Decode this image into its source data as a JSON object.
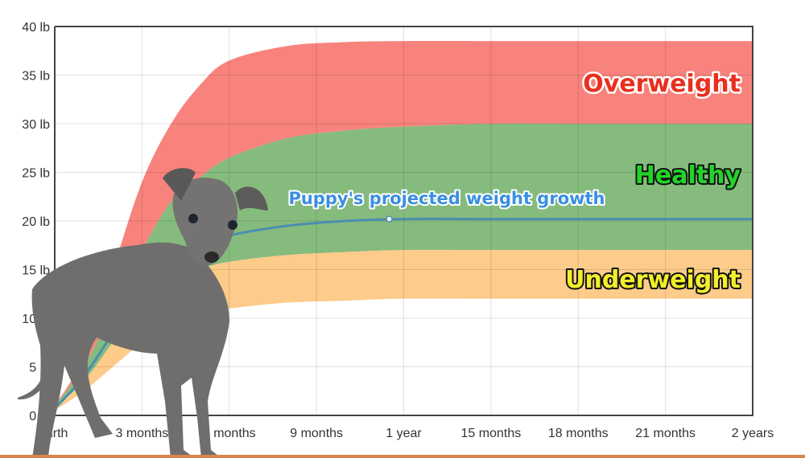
{
  "chart_data": {
    "type": "area",
    "title": "",
    "xlabel": "",
    "ylabel": "",
    "x_unit": "months",
    "x_ticks": [
      {
        "value": 0,
        "label": "Birth"
      },
      {
        "value": 3,
        "label": "3 months"
      },
      {
        "value": 6,
        "label": "6 months"
      },
      {
        "value": 9,
        "label": "9 months"
      },
      {
        "value": 12,
        "label": "1 year"
      },
      {
        "value": 15,
        "label": "15 months"
      },
      {
        "value": 18,
        "label": "18 months"
      },
      {
        "value": 21,
        "label": "21 months"
      },
      {
        "value": 24,
        "label": "2 years"
      }
    ],
    "y_ticks": [
      {
        "value": 0,
        "label": "0 lb"
      },
      {
        "value": 5,
        "label": "5 lb"
      },
      {
        "value": 10,
        "label": "10 lb"
      },
      {
        "value": 15,
        "label": "15 lb"
      },
      {
        "value": 20,
        "label": "20 lb"
      },
      {
        "value": 25,
        "label": "25 lb"
      },
      {
        "value": 30,
        "label": "30 lb"
      },
      {
        "value": 35,
        "label": "35 lb"
      },
      {
        "value": 40,
        "label": "40 lb"
      }
    ],
    "xlim": [
      0,
      24
    ],
    "ylim": [
      0,
      40
    ],
    "grid": true,
    "x": [
      0,
      1,
      2,
      3,
      4,
      5,
      6,
      8,
      10,
      12,
      15,
      18,
      21,
      24
    ],
    "bands": [
      {
        "name": "Overweight",
        "color": "#f8837c",
        "label_color": "#e8301e",
        "upper": [
          1,
          6,
          15,
          24,
          30,
          34,
          36.5,
          38,
          38.4,
          38.5,
          38.5,
          38.5,
          38.5,
          38.5
        ],
        "lower": [
          1,
          5,
          11,
          17,
          22,
          24.5,
          26.5,
          28.5,
          29.3,
          29.7,
          30,
          30,
          30,
          30
        ]
      },
      {
        "name": "Healthy",
        "color": "#86bb7e",
        "label_color": "#22d42a",
        "upper": [
          1,
          5,
          11,
          17,
          22,
          24.5,
          26.5,
          28.5,
          29.3,
          29.7,
          30,
          30,
          30,
          30
        ],
        "lower": [
          0.8,
          3.5,
          7.5,
          11,
          13.5,
          15,
          15.8,
          16.5,
          16.8,
          17,
          17,
          17,
          17,
          17
        ]
      },
      {
        "name": "Underweight",
        "color": "#fdcb8a",
        "label_color": "#f2ee2a",
        "upper": [
          0.8,
          3.5,
          7.5,
          11,
          13.5,
          15,
          15.8,
          16.5,
          16.8,
          17,
          17,
          17,
          17,
          17
        ],
        "lower": [
          0.5,
          2.5,
          5,
          7.5,
          9.5,
          10.5,
          11,
          11.6,
          11.8,
          12,
          12,
          12,
          12,
          12
        ]
      }
    ],
    "series": [
      {
        "name": "Puppy's projected weight growth",
        "color": "#4a8fb0",
        "label_color": "#3a8fe0",
        "values": [
          0.7,
          4,
          8.5,
          13,
          16,
          17.5,
          18.5,
          19.5,
          20,
          20.2,
          20.2,
          20.2,
          20.2,
          20.2
        ],
        "marker_x": 11.5
      }
    ]
  },
  "image": {
    "subject": "grey puppy photo",
    "accent_bar_color": "#d9864a"
  }
}
